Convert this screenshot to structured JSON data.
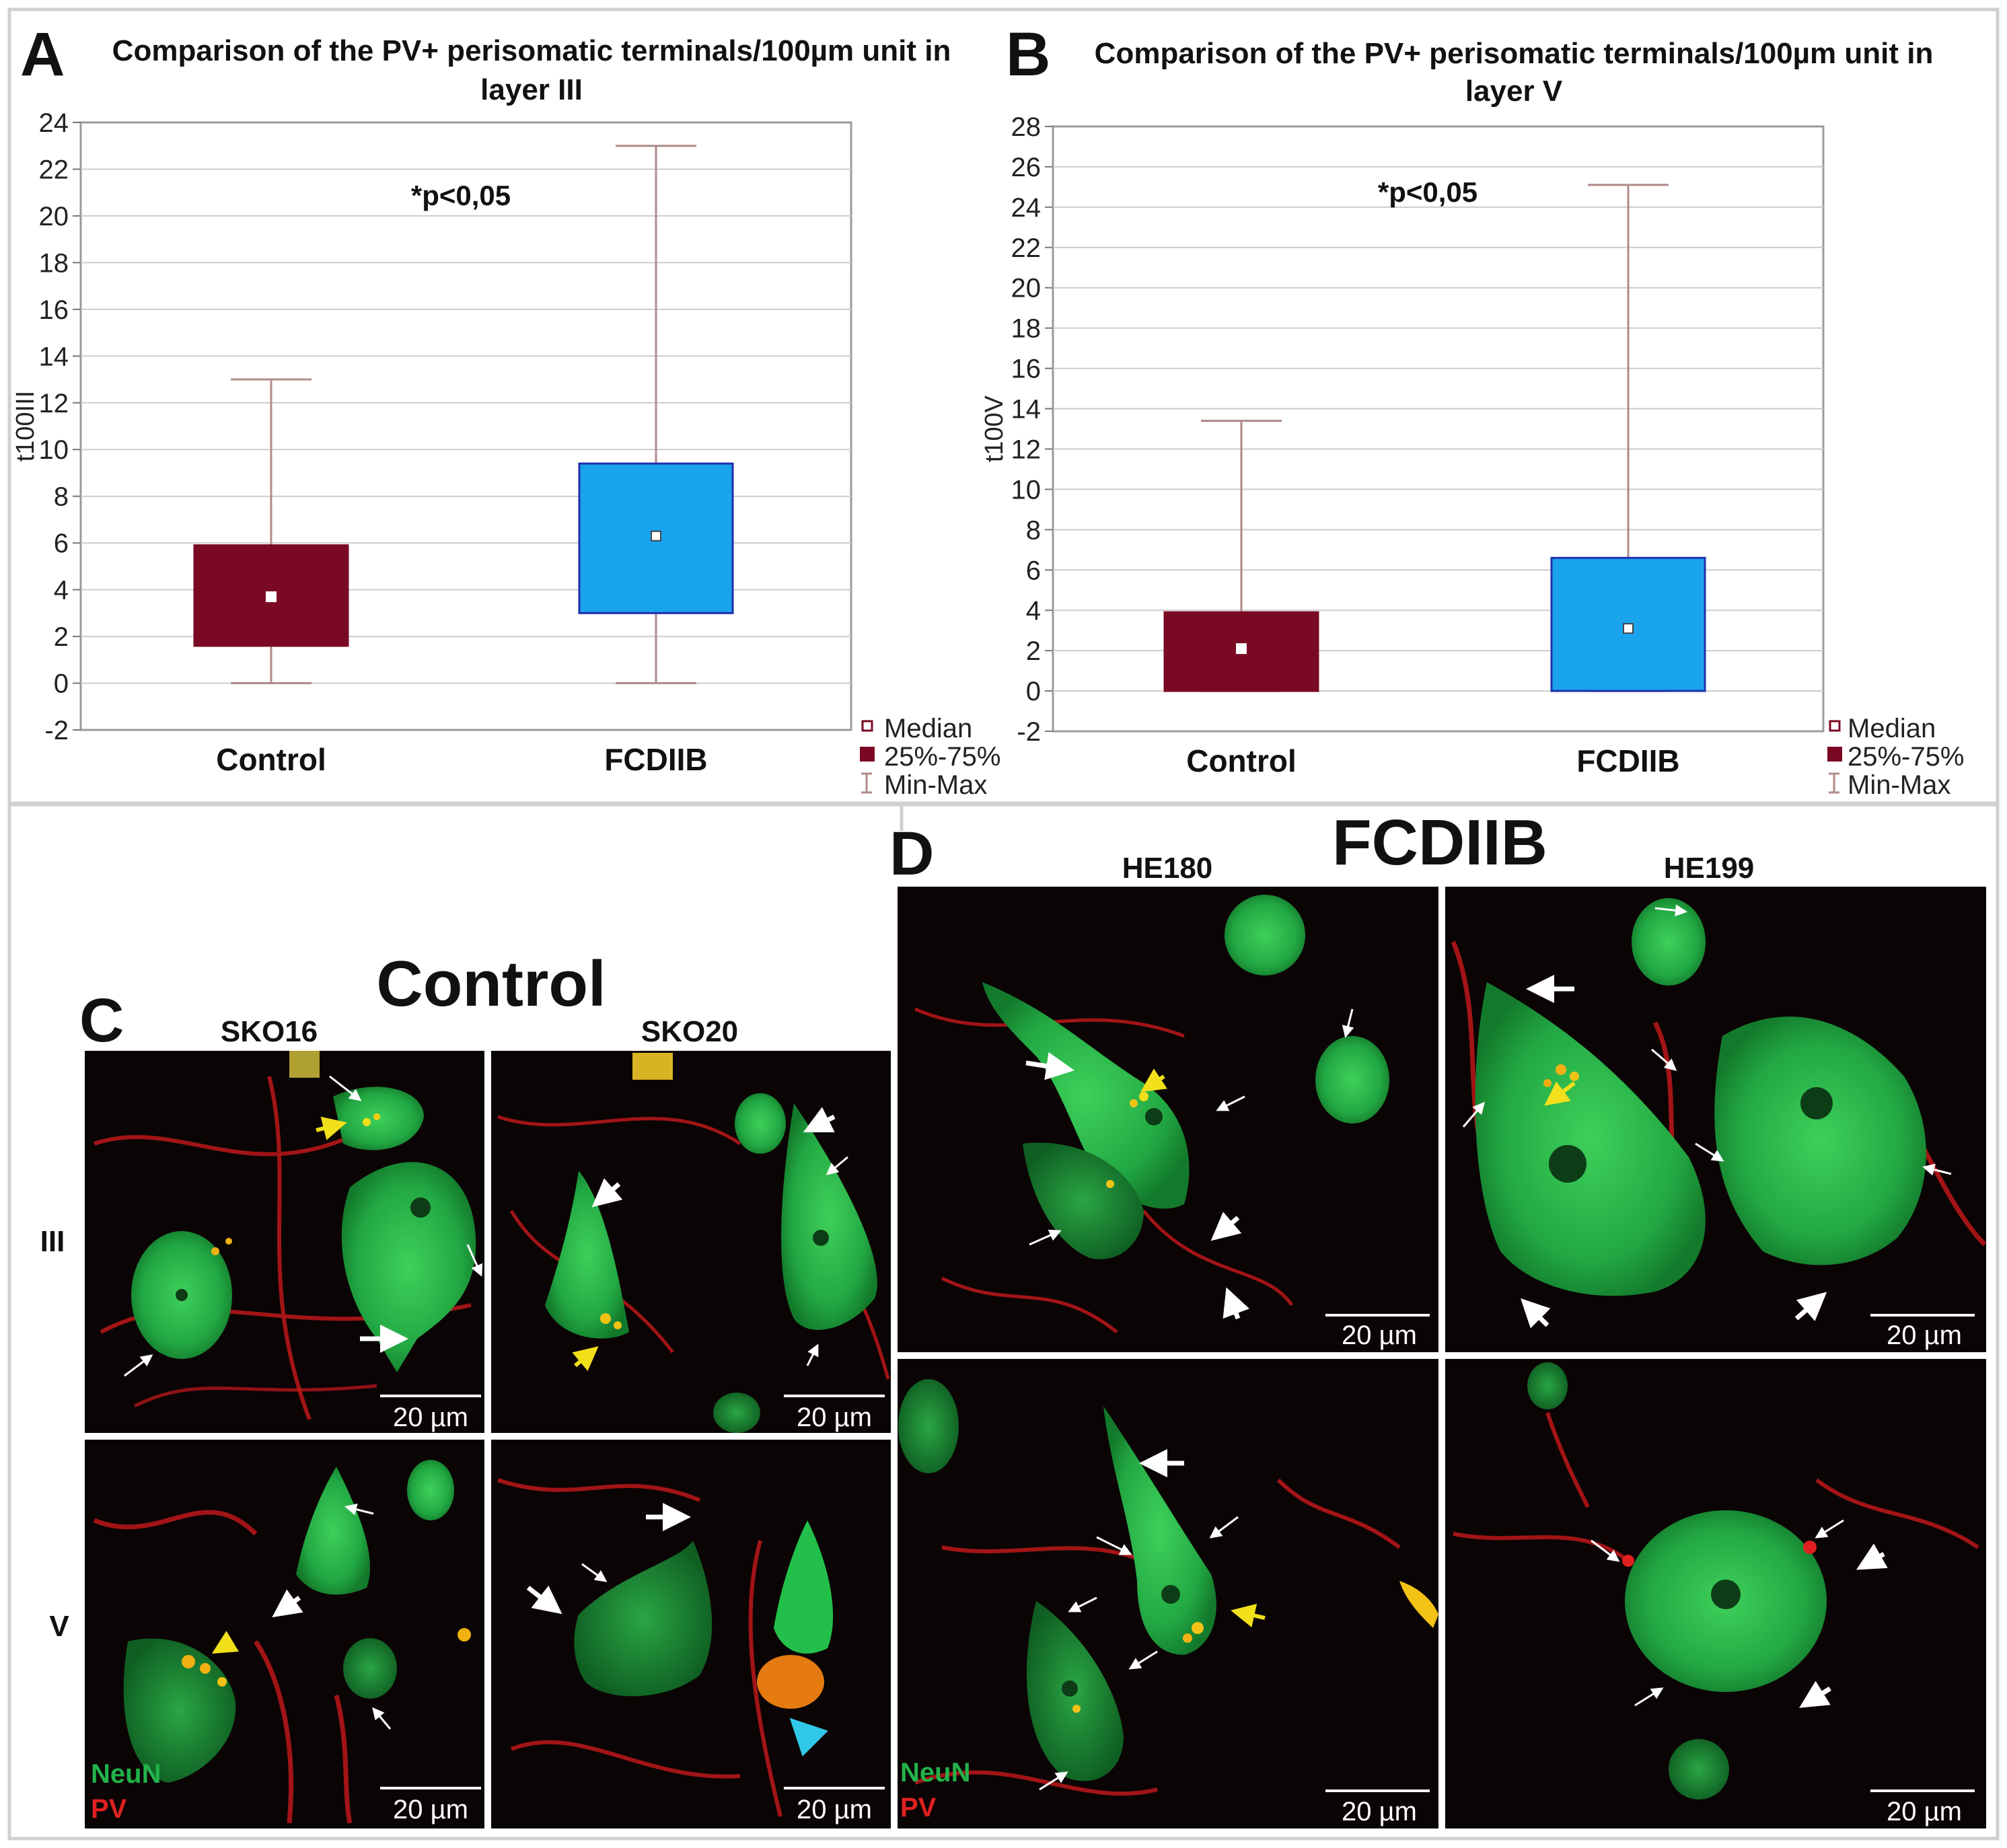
{
  "colors": {
    "control_box": "#7a0a24",
    "fcd_box": "#1aa4ee",
    "fcd_box_border": "#1f2fb0",
    "whisker": "#b08a8a",
    "grid": "#cccccc",
    "neun_green": "#22b24a",
    "pv_red": "#e02020",
    "arrow_yellow": "#f2e01a",
    "arrow_cyan": "#30c8e8"
  },
  "panel_a": {
    "letter": "A",
    "title_line1": "Comparison of the PV+ perisomatic terminals/100µm unit in",
    "title_line2": "layer III",
    "annotation": "*p<0,05"
  },
  "panel_b": {
    "letter": "B",
    "title_line1": "Comparison of the PV+ perisomatic terminals/100µm unit in",
    "title_line2": "layer V",
    "annotation": "*p<0,05"
  },
  "legend": {
    "median": "Median",
    "iqr": "25%-75%",
    "minmax": "Min-Max"
  },
  "chart_data": [
    {
      "type": "box",
      "title": "Comparison of the PV+ perisomatic terminals/100µm unit in layer III",
      "ylabel": "t100III",
      "categories": [
        "Control",
        "FCDIIB"
      ],
      "ylim": [
        -2,
        24
      ],
      "yticks": [
        -2,
        0,
        2,
        4,
        6,
        8,
        10,
        12,
        14,
        16,
        18,
        20,
        22,
        24
      ],
      "grid": true,
      "legend_position": "bottom-right",
      "series": [
        {
          "median": [
            3.7,
            6.3
          ],
          "q1": [
            1.6,
            3.0
          ],
          "q3": [
            5.9,
            9.4
          ],
          "min": [
            0,
            0
          ],
          "max": [
            13.0,
            23.0
          ]
        }
      ]
    },
    {
      "type": "box",
      "title": "Comparison of the PV+ perisomatic terminals/100µm unit in layer V",
      "ylabel": "t100V",
      "categories": [
        "Control",
        "FCDIIB"
      ],
      "ylim": [
        -2,
        28
      ],
      "yticks": [
        -2,
        0,
        2,
        4,
        6,
        8,
        10,
        12,
        14,
        16,
        18,
        20,
        22,
        24,
        26,
        28
      ],
      "grid": true,
      "legend_position": "bottom-right",
      "series": [
        {
          "median": [
            2.1,
            3.1
          ],
          "q1": [
            0,
            0
          ],
          "q3": [
            3.9,
            6.6
          ],
          "min": [
            0,
            0
          ],
          "max": [
            13.4,
            25.1
          ]
        }
      ]
    }
  ],
  "panel_c": {
    "letter": "C",
    "heading": "Control",
    "col1": "SKO16",
    "col2": "SKO20",
    "row1": "III",
    "row2": "V",
    "scale": "20 µm",
    "label_neun": "NeuN",
    "label_pv": "PV"
  },
  "panel_d": {
    "letter": "D",
    "heading": "FCDIIB",
    "col1": "HE180",
    "col2": "HE199",
    "scale": "20 µm",
    "label_neun": "NeuN",
    "label_pv": "PV"
  }
}
